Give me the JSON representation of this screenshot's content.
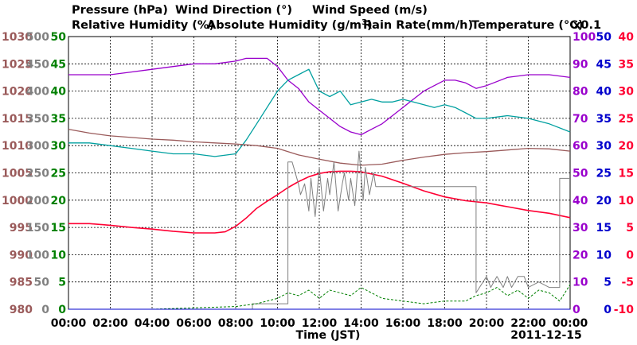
{
  "colors": {
    "pressure": "#9a5a5a",
    "wind_direction": "#808080",
    "wind_speed": "#008000",
    "humidity": "#9900cc",
    "abs_humidity": "#00a0a0",
    "rain": "#0000cc",
    "temperature": "#ff0033"
  },
  "legend": {
    "pressure": "Pressure (hPa)",
    "wind_direction": "Wind Direction (°)",
    "wind_speed": "Wind Speed (m/s)",
    "humidity": "Relative Humidity (%)",
    "abs_humidity": "Absolute Humidity (g/m",
    "abs_humidity_sup": "3",
    "abs_humidity_end": ")",
    "rain": "Rain Rate(mm/h)",
    "temperature": "Temperature (°C)",
    "multiplier": "x0.1"
  },
  "xlabel": "Time (JST)",
  "date": "2011-12-15",
  "chart_data": {
    "type": "line",
    "x_ticks": [
      "00:00",
      "02:00",
      "04:00",
      "06:00",
      "08:00",
      "10:00",
      "12:00",
      "14:00",
      "16:00",
      "18:00",
      "20:00",
      "22:00",
      "00:00"
    ],
    "xlim_hours": [
      0,
      24
    ],
    "axes": {
      "pressure_hpa": [
        "980",
        "985",
        "990",
        "995",
        "1000",
        "1005",
        "1010",
        "1015",
        "1020",
        "1025",
        "1030"
      ],
      "wind_direction_deg": [
        "0",
        "50",
        "100",
        "150",
        "200",
        "250",
        "300",
        "350",
        "400",
        "450",
        "500"
      ],
      "wind_speed_ms": [
        "0",
        "5",
        "10",
        "15",
        "20",
        "25",
        "30",
        "35",
        "40",
        "45",
        "50"
      ],
      "humidity_pct": [
        "0",
        "10",
        "20",
        "30",
        "40",
        "50",
        "60",
        "70",
        "80",
        "90",
        "100"
      ],
      "rain_mmh": [
        "0",
        "5",
        "10",
        "15",
        "20",
        "25",
        "30",
        "35",
        "40",
        "45",
        "50"
      ],
      "temperature_c": [
        "-10",
        "-5",
        "0",
        "5",
        "10",
        "15",
        "20",
        "25",
        "30",
        "35",
        "40"
      ]
    },
    "series": [
      {
        "name": "Relative Humidity (%)",
        "axis": "humidity_pct",
        "x": [
          0,
          1,
          2,
          3,
          4,
          5,
          6,
          7,
          8,
          8.5,
          9,
          9.5,
          10,
          10.5,
          11,
          11.5,
          12,
          12.5,
          13,
          13.5,
          14,
          14.5,
          15,
          15.5,
          16,
          16.5,
          17,
          17.5,
          18,
          18.5,
          19,
          19.5,
          20,
          21,
          22,
          23,
          24
        ],
        "y": [
          86,
          86,
          86,
          87,
          88,
          89,
          90,
          90,
          91,
          92,
          92,
          92,
          89,
          84,
          81,
          76,
          73,
          70,
          67,
          65,
          64,
          66,
          68,
          71,
          74,
          77,
          80,
          82,
          84,
          84,
          83,
          81,
          82,
          85,
          86,
          86,
          85
        ]
      },
      {
        "name": "Absolute Humidity (g/m3)",
        "axis": "wind_speed_ms",
        "x": [
          0,
          1,
          2,
          3,
          4,
          5,
          6,
          7,
          8,
          8.5,
          9,
          9.5,
          10,
          10.5,
          11,
          11.5,
          12,
          12.5,
          13,
          13.5,
          14,
          14.5,
          15,
          15.5,
          16,
          16.5,
          17,
          17.5,
          18,
          18.5,
          19,
          19.5,
          20,
          21,
          22,
          23,
          24
        ],
        "y": [
          30.5,
          30.5,
          30,
          29.5,
          29,
          28.5,
          28.5,
          28,
          28.5,
          31,
          34,
          37,
          40,
          42,
          43,
          44,
          40,
          39,
          40,
          37.5,
          38,
          38.5,
          38,
          38,
          38.5,
          38,
          37.5,
          37,
          37.5,
          37,
          36,
          35,
          35,
          35.5,
          35,
          34,
          32.5
        ]
      },
      {
        "name": "Pressure (hPa)",
        "axis": "pressure_hpa",
        "x": [
          0,
          1,
          2,
          3,
          4,
          5,
          6,
          7,
          8,
          9,
          10,
          11,
          12,
          13,
          14,
          15,
          16,
          17,
          18,
          19,
          20,
          21,
          22,
          23,
          24
        ],
        "y": [
          1013,
          1012.3,
          1011.8,
          1011.5,
          1011.2,
          1011,
          1010.7,
          1010.5,
          1010.3,
          1010,
          1009.5,
          1008.3,
          1007.5,
          1006.8,
          1006.4,
          1006.6,
          1007.3,
          1007.9,
          1008.4,
          1008.7,
          1008.9,
          1009.2,
          1009.5,
          1009.4,
          1009
        ]
      },
      {
        "name": "Temperature (°C)",
        "axis": "temperature_c",
        "x": [
          0,
          1,
          2,
          3,
          4,
          5,
          6,
          6.5,
          7,
          7.5,
          8,
          8.5,
          9,
          9.5,
          10,
          10.5,
          11,
          11.5,
          12,
          12.5,
          13,
          13.5,
          14,
          14.5,
          15,
          16,
          17,
          18,
          19,
          20,
          21,
          22,
          23,
          24
        ],
        "y": [
          5.7,
          5.7,
          5.4,
          5.0,
          4.7,
          4.3,
          4.0,
          4.0,
          4.0,
          4.2,
          5.2,
          6.7,
          8.5,
          9.8,
          11.0,
          12.3,
          13.4,
          14.3,
          14.9,
          15.2,
          15.3,
          15.3,
          15.2,
          14.8,
          14.4,
          13.1,
          11.7,
          10.6,
          9.9,
          9.5,
          8.8,
          8.1,
          7.6,
          6.8
        ]
      },
      {
        "name": "Wind Direction (°)",
        "axis": "wind_direction_deg",
        "x": [
          0,
          8.8,
          8.8,
          10.5,
          10.5,
          10.7,
          11,
          11.1,
          11.3,
          11.5,
          11.6,
          11.8,
          12,
          12.2,
          12.4,
          12.5,
          12.7,
          12.9,
          13.1,
          13.2,
          13.4,
          13.5,
          13.7,
          13.9,
          14.1,
          14.2,
          14.4,
          14.6,
          14.7,
          14.9,
          15,
          18,
          19.5,
          19.5,
          20,
          20.2,
          20.5,
          20.8,
          21,
          21.2,
          21.5,
          21.8,
          22,
          22.5,
          23,
          23.5,
          23.5,
          24
        ],
        "y": [
          0,
          0,
          10,
          10,
          270,
          270,
          230,
          210,
          230,
          180,
          240,
          170,
          260,
          180,
          240,
          210,
          270,
          180,
          230,
          250,
          200,
          240,
          190,
          290,
          200,
          260,
          210,
          250,
          225,
          225,
          225,
          225,
          225,
          30,
          60,
          40,
          60,
          40,
          60,
          40,
          60,
          60,
          40,
          50,
          40,
          40,
          240,
          240
        ]
      },
      {
        "name": "Wind Speed (m/s)",
        "axis": "wind_speed_ms",
        "x": [
          0,
          4,
          8,
          9,
          10,
          10.5,
          11,
          11.5,
          12,
          12.5,
          13,
          13.5,
          14,
          14.5,
          15,
          16,
          17,
          18,
          19,
          19.5,
          20,
          20.5,
          21,
          21.5,
          22,
          22.5,
          23,
          23.5,
          24
        ],
        "y": [
          0,
          0,
          0.5,
          1,
          2,
          3,
          2.5,
          3.5,
          2,
          3.5,
          3,
          2.5,
          4,
          3,
          2,
          1.5,
          1,
          1.5,
          1.5,
          2.5,
          3,
          4,
          2.5,
          3.5,
          2,
          3.5,
          3,
          1.5,
          4.5
        ]
      },
      {
        "name": "Rain Rate(mm/h)",
        "axis": "rain_mmh",
        "x": [
          0,
          24
        ],
        "y": [
          0,
          0
        ]
      }
    ]
  }
}
